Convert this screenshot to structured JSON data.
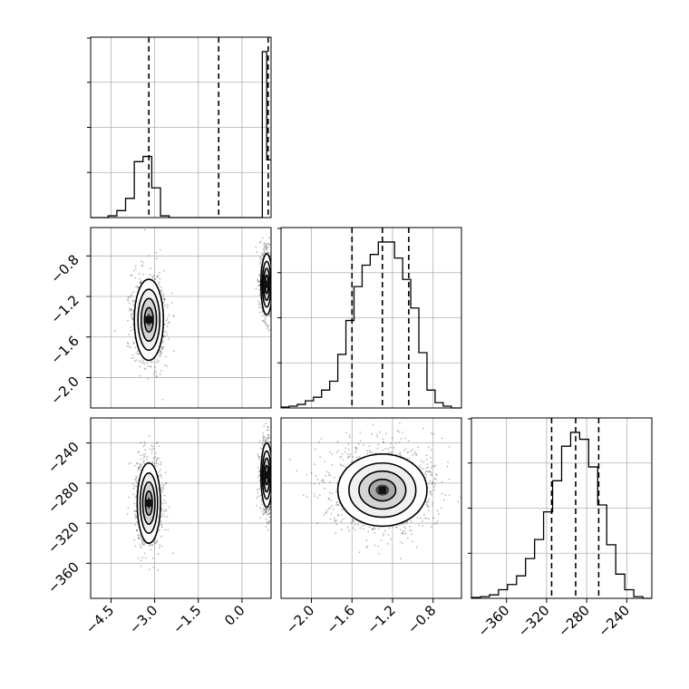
{
  "chart_data": {
    "type": "corner",
    "colors": {
      "line": "#000000",
      "grid": "#b0b0b0",
      "points": "#000000"
    },
    "grid": true,
    "parameters": [
      {
        "id": "p0",
        "range": [
          -5.2,
          1.0
        ],
        "ticks": [
          -4.5,
          -3.0,
          -1.5,
          0.0
        ],
        "tick_labels": [
          "−4.5",
          "−3.0",
          "−1.5",
          "0.0"
        ],
        "quantiles": [
          -3.2,
          -0.8,
          0.9
        ]
      },
      {
        "id": "p1",
        "range": [
          -2.3,
          -0.52
        ],
        "ticks": [
          -2.0,
          -1.6,
          -1.2,
          -0.8
        ],
        "tick_labels": [
          "−2.0",
          "−1.6",
          "−1.2",
          "−0.8"
        ],
        "quantiles": [
          -1.6,
          -1.3,
          -1.04
        ]
      },
      {
        "id": "p2",
        "range": [
          -395,
          -215
        ],
        "ticks": [
          -360,
          -320,
          -280,
          -240
        ],
        "tick_labels": [
          "−360",
          "−320",
          "−280",
          "−240"
        ],
        "quantiles": [
          -315,
          -291,
          -268
        ]
      }
    ],
    "histograms": [
      {
        "param": "p0",
        "bins": [
          -5.2,
          -4.9,
          -4.6,
          -4.3,
          -4.0,
          -3.7,
          -3.4,
          -3.1,
          -2.8,
          -2.5,
          -2.2,
          -1.9,
          -1.6,
          -1.3,
          -1.0,
          -0.7,
          -0.4,
          -0.1,
          0.2,
          0.5,
          0.7,
          0.85,
          1.0
        ],
        "counts": [
          0,
          0,
          1,
          4,
          11,
          32,
          35,
          17,
          1,
          0,
          0,
          0,
          0,
          0,
          0,
          0,
          0,
          0,
          0,
          0,
          95,
          33
        ]
      },
      {
        "param": "p1",
        "bins": [
          -2.3,
          -2.22,
          -2.14,
          -2.06,
          -1.98,
          -1.9,
          -1.82,
          -1.74,
          -1.66,
          -1.58,
          -1.5,
          -1.42,
          -1.34,
          -1.26,
          -1.18,
          -1.1,
          -1.02,
          -0.94,
          -0.86,
          -0.78,
          -0.7,
          -0.62,
          -0.52
        ],
        "counts": [
          0.5,
          1,
          2,
          4,
          6,
          10,
          15,
          30,
          49,
          68,
          80,
          86,
          93,
          93,
          84,
          72,
          56,
          31,
          10,
          3,
          1,
          0
        ]
      },
      {
        "param": "p2",
        "bins": [
          -395,
          -386,
          -377,
          -368,
          -359,
          -350,
          -341,
          -332,
          -323,
          -314,
          -305,
          -296,
          -287,
          -278,
          -269,
          -260,
          -251,
          -242,
          -233,
          -224,
          -215
        ],
        "counts": [
          0.5,
          1,
          2,
          5,
          8,
          13,
          23,
          34,
          50,
          68,
          88,
          96,
          92,
          76,
          54,
          31,
          14,
          5,
          1,
          0
        ]
      }
    ],
    "pairs": [
      {
        "x": "p0",
        "y": "p1",
        "clusters": [
          {
            "center": [
              -3.2,
              -1.43
            ],
            "spread": [
              0.25,
              0.2
            ],
            "n": 900
          },
          {
            "center": [
              0.85,
              -1.08
            ],
            "spread": [
              0.1,
              0.15
            ],
            "n": 700
          }
        ]
      },
      {
        "x": "p0",
        "y": "p2",
        "clusters": [
          {
            "center": [
              -3.2,
              -300
            ],
            "spread": [
              0.2,
              20
            ],
            "n": 900
          },
          {
            "center": [
              0.85,
              -272
            ],
            "spread": [
              0.1,
              16
            ],
            "n": 700
          }
        ]
      },
      {
        "x": "p1",
        "y": "p2",
        "clusters": [
          {
            "center": [
              -1.3,
              -287
            ],
            "spread": [
              0.22,
              18
            ],
            "n": 1500
          }
        ]
      }
    ]
  }
}
